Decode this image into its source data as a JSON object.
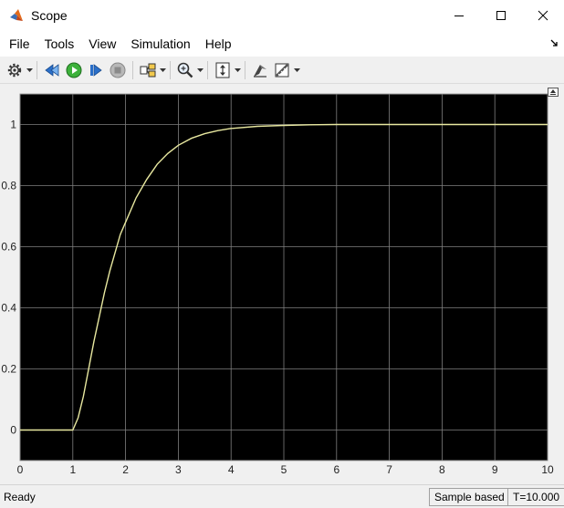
{
  "window": {
    "title": "Scope"
  },
  "menu": {
    "items": [
      "File",
      "Tools",
      "View",
      "Simulation",
      "Help"
    ]
  },
  "toolbar": {
    "buttons": [
      {
        "icon": "gear-icon"
      },
      {
        "icon": "step-back-icon"
      },
      {
        "icon": "run-icon"
      },
      {
        "icon": "step-forward-icon"
      },
      {
        "icon": "stop-icon"
      },
      {
        "icon": "signal-selector-icon"
      },
      {
        "icon": "zoom-icon"
      },
      {
        "icon": "scale-y-axis-icon"
      },
      {
        "icon": "highlight-block-icon"
      },
      {
        "icon": "measurements-icon"
      }
    ]
  },
  "chart_data": {
    "type": "line",
    "title": "",
    "xlabel": "",
    "ylabel": "",
    "xlim": [
      0,
      10
    ],
    "ylim": [
      -0.1,
      1.1
    ],
    "x_ticks": [
      0,
      1,
      2,
      3,
      4,
      5,
      6,
      7,
      8,
      9,
      10
    ],
    "y_ticks": [
      0,
      0.2,
      0.4,
      0.6,
      0.8,
      1
    ],
    "grid": true,
    "background": "#000000",
    "grid_color": "#7f7f7f",
    "series": [
      {
        "color": "#e8e8a0",
        "x": [
          0,
          1,
          1.1,
          1.2,
          1.3,
          1.4,
          1.5,
          1.6,
          1.7,
          1.8,
          1.9,
          2,
          2.2,
          2.4,
          2.6,
          2.8,
          3,
          3.25,
          3.5,
          3.75,
          4,
          4.5,
          5,
          5.5,
          6,
          7,
          8,
          9,
          10
        ],
        "y": [
          0,
          0,
          0.04,
          0.11,
          0.2,
          0.29,
          0.37,
          0.45,
          0.52,
          0.58,
          0.64,
          0.68,
          0.76,
          0.82,
          0.87,
          0.905,
          0.932,
          0.955,
          0.97,
          0.98,
          0.987,
          0.994,
          0.997,
          0.999,
          1,
          1,
          1,
          1,
          1
        ]
      }
    ]
  },
  "status": {
    "left": "Ready",
    "mode": "Sample based",
    "time": "T=10.000"
  }
}
